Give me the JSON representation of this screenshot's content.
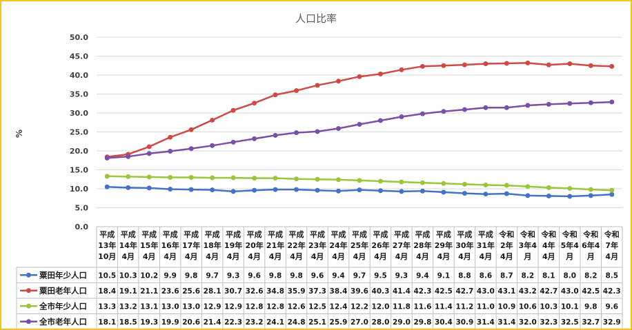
{
  "chart_data": {
    "type": "line",
    "title": "人口比率",
    "ylabel": "%",
    "ylim": [
      0,
      50
    ],
    "yticks": [
      "0.0",
      "5.0",
      "10.0",
      "15.0",
      "20.0",
      "25.0",
      "30.0",
      "35.0",
      "40.0",
      "45.0",
      "50.0"
    ],
    "categories": [
      "平成13年10月",
      "平成14年4月",
      "平成15年4月",
      "平成16年4月",
      "平成17年4月",
      "平成18年4月",
      "平成19年4月",
      "平成20年4月",
      "平成21年4月",
      "平成22年4月",
      "平成23年4月",
      "平成24年4月",
      "平成25年4月",
      "平成26年4月",
      "平成27年4月",
      "平成28年4月",
      "平成29年4月",
      "平成30年4月",
      "平成31年4月",
      "令和2年4月",
      "令和3年4月",
      "令和4年4月",
      "令和5年4月",
      "令和6年4月",
      "令和7年4月"
    ],
    "category_lines": [
      [
        "平成",
        "13年",
        "10月"
      ],
      [
        "平成",
        "14年",
        "4月"
      ],
      [
        "平成",
        "15年",
        "4月"
      ],
      [
        "平成",
        "16年",
        "4月"
      ],
      [
        "平成",
        "17年",
        "4月"
      ],
      [
        "平成",
        "18年",
        "4月"
      ],
      [
        "平成",
        "19年",
        "4月"
      ],
      [
        "平成",
        "20年",
        "4月"
      ],
      [
        "平成",
        "21年",
        "4月"
      ],
      [
        "平成",
        "22年",
        "4月"
      ],
      [
        "平成",
        "23年",
        "4月"
      ],
      [
        "平成",
        "24年",
        "4月"
      ],
      [
        "平成",
        "25年",
        "4月"
      ],
      [
        "平成",
        "26年",
        "4月"
      ],
      [
        "平成",
        "27年",
        "4月"
      ],
      [
        "平成",
        "28年",
        "4月"
      ],
      [
        "平成",
        "29年",
        "4月"
      ],
      [
        "平成",
        "30年",
        "4月"
      ],
      [
        "平成",
        "31年",
        "4月"
      ],
      [
        "令和",
        "2年",
        "4月"
      ],
      [
        "令和",
        "3年4",
        "月"
      ],
      [
        "令和",
        "4年",
        "4月"
      ],
      [
        "令和",
        "5年4",
        "月"
      ],
      [
        "令和",
        "6年4",
        "月"
      ],
      [
        "令和",
        "7年",
        "4月"
      ]
    ],
    "series": [
      {
        "name": "粟田年少人口",
        "color": "#4472c4",
        "values": [
          10.5,
          10.3,
          10.2,
          9.9,
          9.8,
          9.7,
          9.3,
          9.6,
          9.8,
          9.8,
          9.6,
          9.4,
          9.7,
          9.5,
          9.3,
          9.4,
          9.1,
          8.8,
          8.6,
          8.7,
          8.2,
          8.1,
          8.0,
          8.2,
          8.5
        ],
        "labels": [
          "10.5",
          "10.3",
          "10.2",
          "9.9",
          "9.8",
          "9.7",
          "9.3",
          "9.6",
          "9.8",
          "9.8",
          "9.6",
          "9.4",
          "9.7",
          "9.5",
          "9.3",
          "9.4",
          "9.1",
          "8.8",
          "8.6",
          "8.7",
          "8.2",
          "8.1",
          "8.0",
          "8.2",
          "8.5"
        ]
      },
      {
        "name": "粟田老年人口",
        "color": "#cf4a46",
        "values": [
          18.4,
          19.1,
          21.1,
          23.6,
          25.6,
          28.1,
          30.7,
          32.6,
          34.8,
          35.9,
          37.3,
          38.4,
          39.6,
          40.3,
          41.4,
          42.3,
          42.5,
          42.7,
          43.0,
          43.1,
          43.2,
          42.7,
          43.0,
          42.5,
          42.3
        ],
        "labels": [
          "18.4",
          "19.1",
          "21.1",
          "23.6",
          "25.6",
          "28.1",
          "30.7",
          "32.6",
          "34.8",
          "35.9",
          "37.3",
          "38.4",
          "39.6",
          "40.3",
          "41.4",
          "42.3",
          "42.5",
          "42.7",
          "43.0",
          "43.1",
          "43.2",
          "42.7",
          "43.0",
          "42.5",
          "42.3"
        ]
      },
      {
        "name": "全市年少人口",
        "color": "#9bc53d",
        "values": [
          13.3,
          13.2,
          13.1,
          13.0,
          13.0,
          12.9,
          12.9,
          12.8,
          12.8,
          12.6,
          12.5,
          12.4,
          12.2,
          12.0,
          11.8,
          11.6,
          11.4,
          11.2,
          11.0,
          10.9,
          10.6,
          10.3,
          10.1,
          9.8,
          9.6
        ],
        "labels": [
          "13.3",
          "13.2",
          "13.1",
          "13.0",
          "13.0",
          "12.9",
          "12.9",
          "12.8",
          "12.8",
          "12.6",
          "12.5",
          "12.4",
          "12.2",
          "12.0",
          "11.8",
          "11.6",
          "11.4",
          "11.2",
          "11.0",
          "10.9",
          "10.6",
          "10.3",
          "10.1",
          "9.8",
          "9.6"
        ]
      },
      {
        "name": "全市老年人口",
        "color": "#7a4fa8",
        "values": [
          18.1,
          18.5,
          19.3,
          19.9,
          20.6,
          21.4,
          22.3,
          23.2,
          24.1,
          24.8,
          25.1,
          25.9,
          27.0,
          28.0,
          29.0,
          29.8,
          30.4,
          30.9,
          31.4,
          31.4,
          32.0,
          32.3,
          32.5,
          32.7,
          32.9
        ],
        "labels": [
          "18.1",
          "18.5",
          "19.3",
          "19.9",
          "20.6",
          "21.4",
          "22.3",
          "23.2",
          "24.1",
          "24.8",
          "25.1",
          "25.9",
          "27.0",
          "28.0",
          "29.0",
          "29.8",
          "30.4",
          "30.9",
          "31.4",
          "31.4",
          "32.0",
          "32.3",
          "32.5",
          "32.7",
          "32.9"
        ]
      }
    ],
    "grid": true,
    "legend": "data-table"
  }
}
